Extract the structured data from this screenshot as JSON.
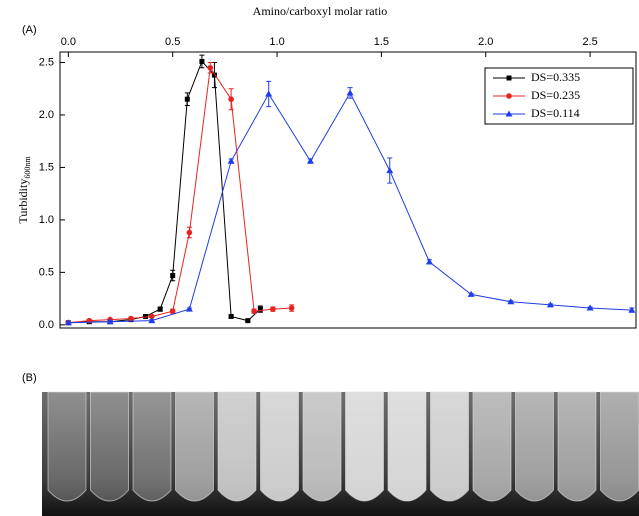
{
  "chart_data": {
    "type": "line",
    "panel_a_label": "(A)",
    "panel_b_label": "(B)",
    "x_label": "Amino/carboxyl molar ratio",
    "y_label": "Turbidity",
    "y_label_sub": "600nm",
    "xlim": [
      -0.04,
      2.72
    ],
    "ylim": [
      -0.03,
      2.6
    ],
    "xticks": [
      {
        "value": 0,
        "label": "0.0"
      },
      0.5,
      {
        "value": 1,
        "label": "1.0"
      },
      1.5,
      {
        "value": 2,
        "label": "2.0"
      },
      2.5
    ],
    "yticks": [
      {
        "value": 0,
        "label": "0.0"
      },
      0.5,
      {
        "value": 1,
        "label": "1.0"
      },
      1.5,
      {
        "value": 2,
        "label": "2.0"
      },
      2.5
    ],
    "legend": "upper right",
    "series": [
      {
        "name": "DS=0.335",
        "color": "#000000",
        "marker": "square",
        "x": [
          0.0,
          0.1,
          0.2,
          0.3,
          0.37,
          0.44,
          0.5,
          0.57,
          0.64,
          0.7,
          0.78,
          0.86,
          0.92
        ],
        "values": [
          0.02,
          0.03,
          0.03,
          0.05,
          0.08,
          0.15,
          0.47,
          2.15,
          2.51,
          2.38,
          0.08,
          0.04,
          0.15
        ],
        "errors": [
          0.01,
          0.01,
          0.01,
          0.01,
          0.01,
          0.02,
          0.05,
          0.06,
          0.06,
          0.12,
          0.01,
          0.01,
          0.03
        ]
      },
      {
        "name": "DS=0.235",
        "color": "#e8231f",
        "marker": "circle",
        "x": [
          0.0,
          0.1,
          0.2,
          0.3,
          0.4,
          0.5,
          0.58,
          0.68,
          0.78,
          0.89,
          0.98,
          1.07
        ],
        "values": [
          0.02,
          0.04,
          0.05,
          0.06,
          0.08,
          0.13,
          0.88,
          2.45,
          2.15,
          0.13,
          0.15,
          0.16
        ],
        "errors": [
          0.01,
          0.01,
          0.01,
          0.01,
          0.01,
          0.02,
          0.05,
          0.05,
          0.1,
          0.02,
          0.02,
          0.03
        ]
      },
      {
        "name": "DS=0.114",
        "color": "#1f3de8",
        "marker": "triangle",
        "x": [
          0.0,
          0.2,
          0.4,
          0.58,
          0.78,
          0.96,
          1.16,
          1.35,
          1.54,
          1.73,
          1.93,
          2.12,
          2.31,
          2.5,
          2.7
        ],
        "values": [
          0.02,
          0.03,
          0.04,
          0.15,
          1.56,
          2.2,
          1.56,
          2.21,
          1.47,
          0.6,
          0.29,
          0.22,
          0.19,
          0.16,
          0.14
        ],
        "errors": [
          0.01,
          0.01,
          0.01,
          0.01,
          0.02,
          0.12,
          0.02,
          0.05,
          0.12,
          0.02,
          0.01,
          0.01,
          0.01,
          0.01,
          0.02
        ]
      }
    ]
  }
}
